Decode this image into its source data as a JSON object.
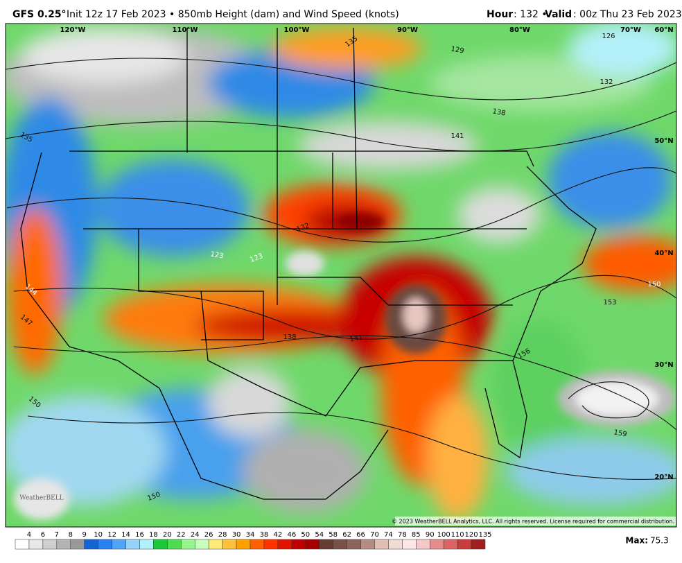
{
  "header": {
    "model": "GFS 0.25°",
    "description": "Init 12z 17 Feb 2023 • 850mb Height (dam) and Wind Speed (knots)",
    "hour_label": "Hour",
    "hour_value": ": 132 •",
    "valid_label": "Valid",
    "valid_value": ": 00z Thu 23 Feb 2023"
  },
  "map": {
    "longitude_labels": [
      "120°W",
      "110°W",
      "100°W",
      "90°W",
      "80°W",
      "70°W",
      "60°N"
    ],
    "latitude_labels": [
      "50°N",
      "40°N",
      "30°N",
      "20°N"
    ],
    "contour_labels": [
      "135",
      "129",
      "126",
      "132",
      "138",
      "141",
      "135",
      "132",
      "123",
      "123",
      "138",
      "141",
      "144",
      "147",
      "150",
      "150",
      "150",
      "153",
      "156",
      "159"
    ],
    "copyright": "© 2023 WeatherBELL Analytics, LLC. All rights reserved. License required for commercial distribution.",
    "logo": "WeatherBELL"
  },
  "colorbar": {
    "ticks": [
      4,
      6,
      7,
      8,
      9,
      10,
      12,
      14,
      16,
      18,
      20,
      22,
      24,
      26,
      28,
      30,
      34,
      38,
      42,
      46,
      50,
      54,
      58,
      62,
      66,
      70,
      74,
      78,
      85,
      90,
      100,
      110,
      120,
      135
    ],
    "colors": [
      "#ffffff",
      "#e8e8e8",
      "#cfcfcf",
      "#b4b4b4",
      "#999999",
      "#1464d2",
      "#2882f0",
      "#50a5f5",
      "#96d2fa",
      "#b4f0fa",
      "#1ec83c",
      "#50dc50",
      "#96f58c",
      "#c8ffbe",
      "#ffe978",
      "#ffc03c",
      "#ffa000",
      "#ff6000",
      "#ff3200",
      "#e11400",
      "#c00000",
      "#a50000",
      "#643c32",
      "#785046",
      "#8c645a",
      "#b48c82",
      "#e1beb4",
      "#f0dcd2",
      "#ffe6e6",
      "#f5c8c8",
      "#e68c8c",
      "#dc6464",
      "#c83c3c",
      "#a01e1e"
    ],
    "max_label": "Max:",
    "max_value": 75.3
  }
}
